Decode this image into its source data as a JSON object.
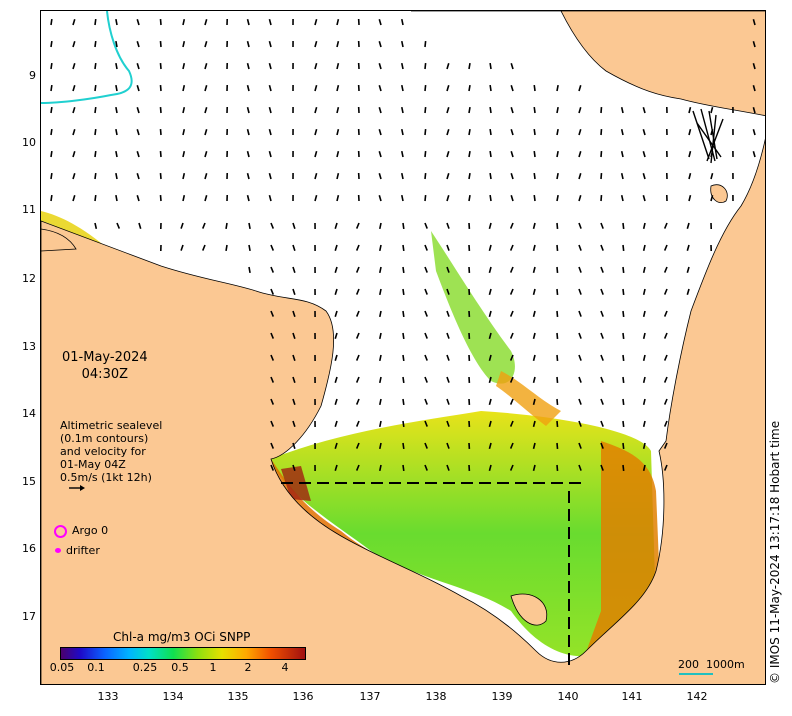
{
  "map": {
    "date": "01-May-2024",
    "time": "04:30Z",
    "altimetry_lines": [
      "Altimetric sealevel",
      "(0.1m contours)",
      "and velocity for",
      "01-May 04Z",
      "0.5m/s (1kt 12h)"
    ],
    "lat_ticks": [
      "9",
      "10",
      "11",
      "12",
      "13",
      "14",
      "15",
      "16",
      "17"
    ],
    "lon_ticks": [
      "133",
      "134",
      "135",
      "136",
      "137",
      "138",
      "139",
      "140",
      "141",
      "142"
    ],
    "legend": {
      "argo": "Argo 0",
      "drifter": "drifter"
    },
    "colorbar": {
      "title": "Chl-a mg/m3 OCi SNPP",
      "ticks": [
        "0.05",
        "0.1",
        "0.25",
        "0.5",
        "1",
        "2",
        "4"
      ]
    },
    "scale": {
      "label_a": "200",
      "label_b": "1000m"
    },
    "credit": "© IMOS 11-May-2024 13:17:18 Hobart time",
    "colors": {
      "land": "#fbc893",
      "sea": "#ffffff",
      "argo": "#ff00ff",
      "contour": "#20d0d0"
    },
    "icons": [
      "argo-ring-icon",
      "drifter-dot-icon",
      "velocity-arrow-icon"
    ]
  }
}
